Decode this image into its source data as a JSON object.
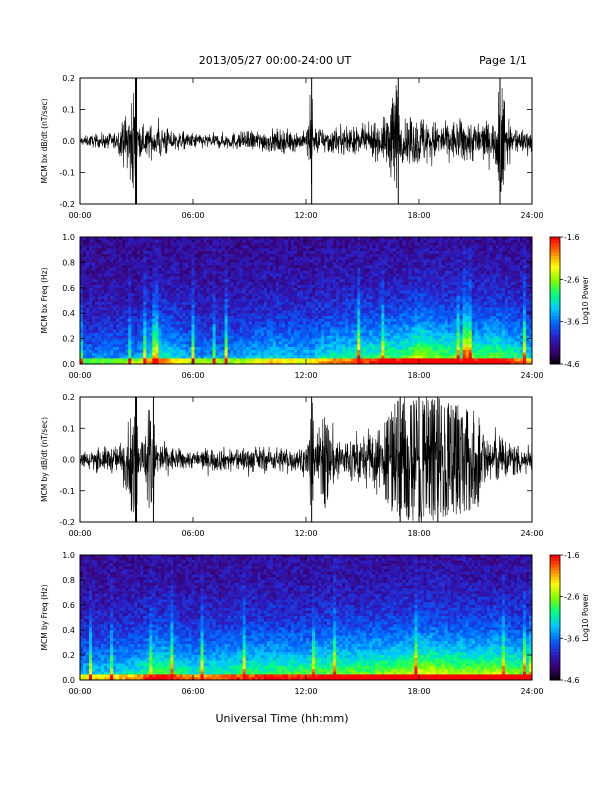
{
  "header": {
    "title": "2013/05/27  00:00-24:00 UT",
    "page": "Page 1/1"
  },
  "colors": {
    "trace": "#000000",
    "axes": "#000000",
    "colorbar": [
      "#000000",
      "#3a0070",
      "#2a20c8",
      "#0066ff",
      "#00c8ff",
      "#00ff80",
      "#80ff00",
      "#ffff00",
      "#ff8000",
      "#ff0000"
    ]
  },
  "chart_data": [
    {
      "type": "line",
      "ylabel": "MCM bx dB/dt (nT/sec)",
      "xlim": [
        "00:00",
        "24:00"
      ],
      "ylim": [
        -0.2,
        0.2
      ],
      "xticks": [
        "00:00",
        "06:00",
        "12:00",
        "18:00",
        "24:00"
      ],
      "yticks": [
        "0.2",
        "0.1",
        "0.0",
        "-0.1",
        "-0.2"
      ],
      "grid": false,
      "series": [
        {
          "x_hours": [
            0,
            1,
            2,
            2.95,
            3.0,
            3.1,
            4,
            4.1,
            5,
            6,
            7,
            8,
            9,
            10,
            11,
            12,
            12.3,
            12.4,
            13,
            14,
            15,
            16,
            16.9,
            17,
            18,
            18.5,
            19,
            20,
            20.5,
            21,
            22,
            22.3,
            23,
            24
          ],
          "envelope": [
            0.02,
            0.03,
            0.04,
            0.2,
            0.2,
            0.06,
            0.07,
            0.1,
            0.04,
            0.035,
            0.03,
            0.035,
            0.045,
            0.05,
            0.05,
            0.04,
            0.2,
            0.07,
            0.06,
            0.06,
            0.06,
            0.08,
            0.2,
            0.08,
            0.12,
            0.1,
            0.08,
            0.09,
            0.1,
            0.09,
            0.08,
            0.2,
            0.06,
            0.05
          ]
        }
      ]
    },
    {
      "type": "heatmap",
      "ylabel": "MCM bx Freq (Hz)",
      "xlim": [
        "00:00",
        "24:00"
      ],
      "ylim": [
        0.0,
        1.0
      ],
      "xticks": [
        "00:00",
        "06:00",
        "12:00",
        "18:00",
        "24:00"
      ],
      "yticks": [
        "1.0",
        "0.8",
        "0.6",
        "0.4",
        "0.2",
        "0.0"
      ],
      "colorbar": {
        "label": "Log10 Power",
        "range": [
          -4.6,
          -1.6
        ],
        "ticks": [
          "-1.6",
          "-2.6",
          "-3.6",
          "-4.6"
        ]
      }
    },
    {
      "type": "line",
      "ylabel": "MCM by dB/dt (nT/sec)",
      "xlim": [
        "00:00",
        "24:00"
      ],
      "ylim": [
        -0.2,
        0.2
      ],
      "xticks": [
        "00:00",
        "06:00",
        "12:00",
        "18:00",
        "24:00"
      ],
      "yticks": [
        "0.2",
        "0.1",
        "0.0",
        "-0.1",
        "-0.2"
      ],
      "grid": false,
      "series": [
        {
          "x_hours": [
            0,
            1,
            2,
            2.95,
            3.0,
            3.1,
            3.9,
            4.0,
            5,
            6,
            7,
            8,
            9,
            10,
            11,
            12,
            12.3,
            12.5,
            13,
            14,
            15,
            16,
            17,
            18,
            19,
            20,
            21,
            22,
            23,
            24
          ],
          "envelope": [
            0.04,
            0.05,
            0.06,
            0.2,
            0.2,
            0.08,
            0.2,
            0.1,
            0.05,
            0.04,
            0.05,
            0.05,
            0.06,
            0.05,
            0.06,
            0.06,
            0.2,
            0.12,
            0.16,
            0.1,
            0.12,
            0.14,
            0.2,
            0.2,
            0.2,
            0.18,
            0.16,
            0.12,
            0.08,
            0.06
          ]
        }
      ]
    },
    {
      "type": "heatmap",
      "ylabel": "MCM by Freq (Hz)",
      "xlim": [
        "00:00",
        "24:00"
      ],
      "ylim": [
        0.0,
        1.0
      ],
      "xticks": [
        "00:00",
        "06:00",
        "12:00",
        "18:00",
        "24:00"
      ],
      "yticks": [
        "1.0",
        "0.8",
        "0.6",
        "0.4",
        "0.2",
        "0.0"
      ],
      "colorbar": {
        "label": "Log10 Power",
        "range": [
          -4.6,
          -1.6
        ],
        "ticks": [
          "-1.6",
          "-2.6",
          "-3.6",
          "-4.6"
        ]
      }
    }
  ],
  "footer": {
    "xlabel": "Universal Time (hh:mm)"
  }
}
